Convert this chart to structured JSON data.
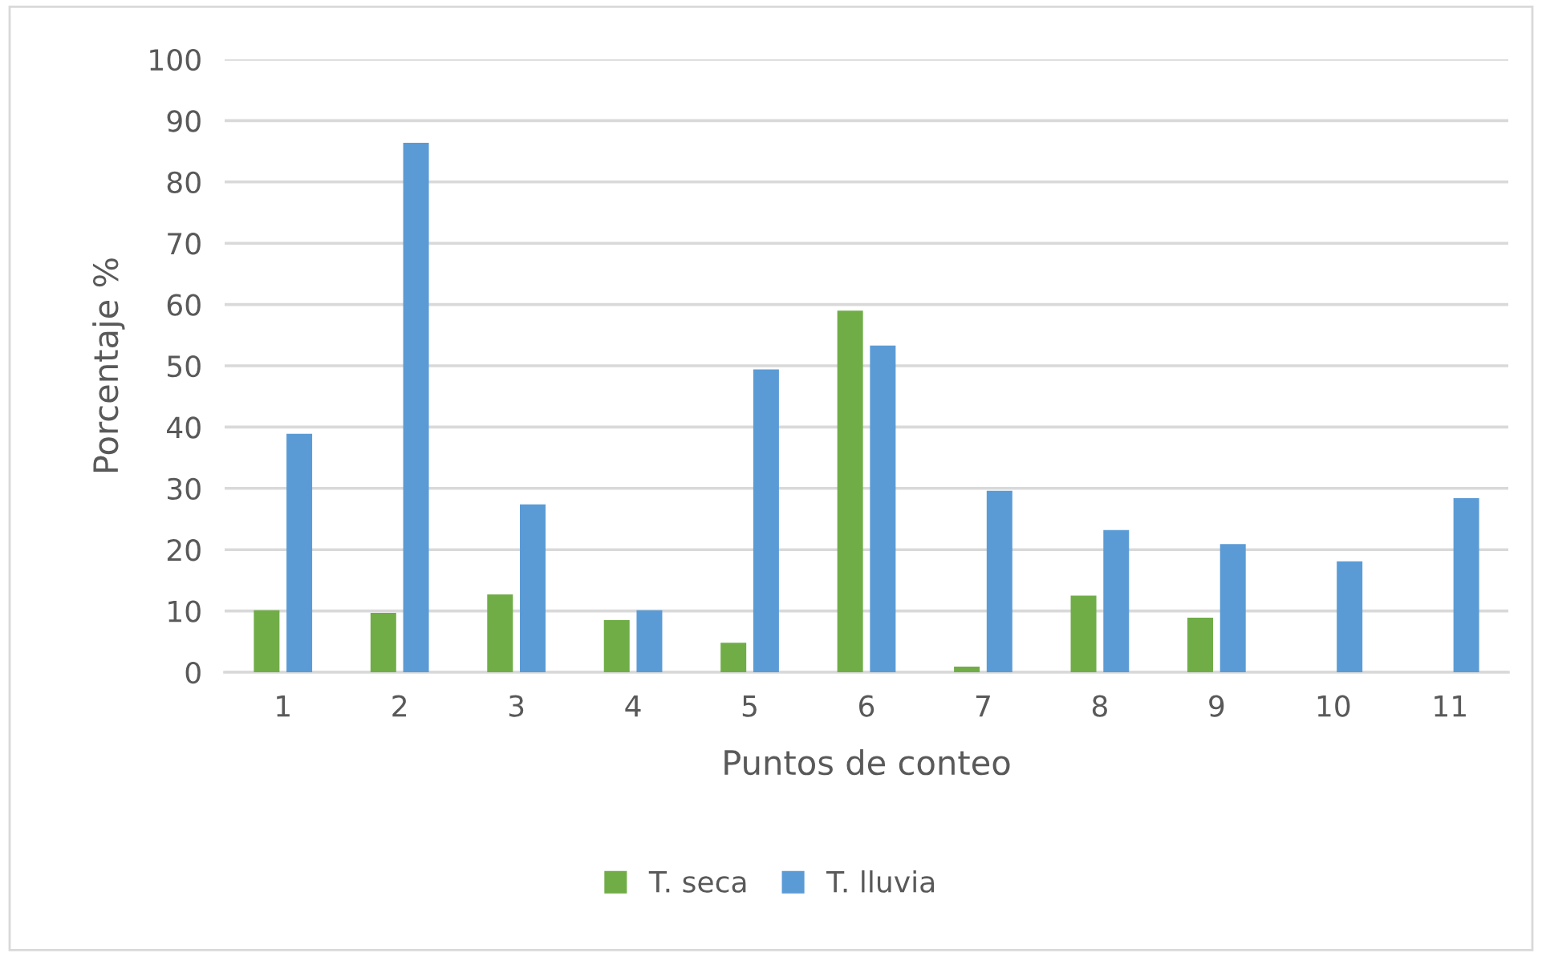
{
  "chart_data": {
    "type": "bar",
    "xlabel": "Puntos de conteo",
    "ylabel": "Porcentaje %",
    "categories": [
      "1",
      "2",
      "3",
      "4",
      "5",
      "6",
      "7",
      "8",
      "9",
      "10",
      "11"
    ],
    "series": [
      {
        "name": "T. seca",
        "color": "#70ad47",
        "values": [
          10.1,
          9.7,
          12.7,
          8.5,
          4.8,
          59.0,
          0.9,
          12.5,
          8.9,
          0,
          0
        ]
      },
      {
        "name": "T. lluvia",
        "color": "#5b9bd5",
        "values": [
          38.9,
          86.4,
          27.4,
          10.1,
          49.4,
          53.3,
          29.6,
          23.2,
          20.9,
          18.1,
          28.4
        ]
      }
    ],
    "ylim": [
      0,
      100
    ],
    "yticks": [
      0,
      10,
      20,
      30,
      40,
      50,
      60,
      70,
      80,
      90,
      100
    ],
    "grid": "y",
    "legend": "bottom"
  }
}
